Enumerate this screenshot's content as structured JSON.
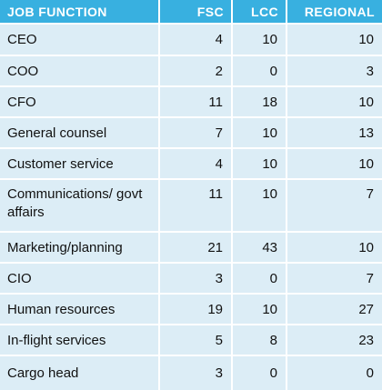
{
  "header": {
    "job_function": "JOB FUNCTION",
    "fsc": "FSC",
    "lcc": "LCC",
    "regional": "REGIONAL"
  },
  "rows": [
    {
      "function": "CEO",
      "fsc": "4",
      "lcc": "10",
      "regional": "10"
    },
    {
      "function": "COO",
      "fsc": "2",
      "lcc": "0",
      "regional": "3"
    },
    {
      "function": "CFO",
      "fsc": "11",
      "lcc": "18",
      "regional": "10"
    },
    {
      "function": "General counsel",
      "fsc": "7",
      "lcc": "10",
      "regional": "13"
    },
    {
      "function": "Customer service",
      "fsc": "4",
      "lcc": "10",
      "regional": "10"
    },
    {
      "function": "Communications/ govt affairs",
      "fsc": "11",
      "lcc": "10",
      "regional": "7"
    },
    {
      "function": "Marketing/planning",
      "fsc": "21",
      "lcc": "43",
      "regional": "10"
    },
    {
      "function": "CIO",
      "fsc": "3",
      "lcc": "0",
      "regional": "7"
    },
    {
      "function": "Human resources",
      "fsc": "19",
      "lcc": "10",
      "regional": "27"
    },
    {
      "function": "In-flight services",
      "fsc": "5",
      "lcc": "8",
      "regional": "23"
    },
    {
      "function": "Cargo head",
      "fsc": "3",
      "lcc": "0",
      "regional": "0"
    }
  ],
  "colors": {
    "header_bg": "#38b0e0",
    "row_bg": "#dcedf6",
    "divider": "#ffffff"
  }
}
